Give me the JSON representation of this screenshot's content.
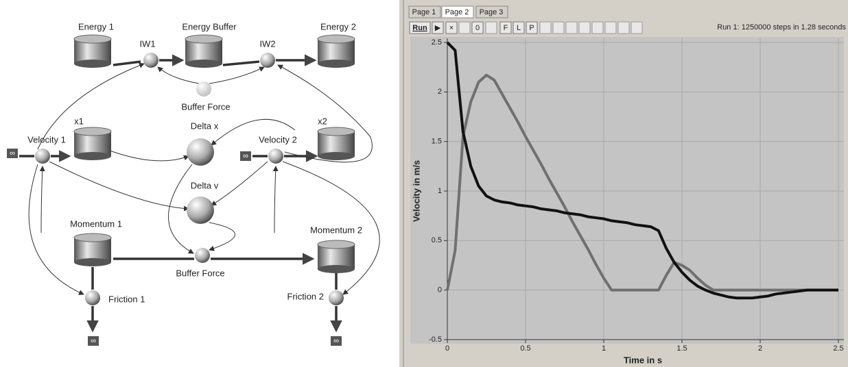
{
  "diagram": {
    "nodes": [
      "Energy 1",
      "IW1",
      "Energy Buffer",
      "IW2",
      "Energy 2",
      "Buffer Force",
      "x1",
      "Delta x",
      "x2",
      "Velocity 1",
      "Velocity 2",
      "Delta v",
      "Momentum 1",
      "Momentum 2",
      "Buffer Force",
      "Friction 1",
      "Friction 2"
    ],
    "infinity_symbol": "∞"
  },
  "tabs": [
    "Page 1",
    "Page 2",
    "Page 3"
  ],
  "toolbar": {
    "buttons": [
      "Run",
      "▶",
      "×",
      "0",
      "F",
      "L",
      "P"
    ],
    "status": "Run 1: 1250000 steps in 1.28 seconds"
  },
  "chart_data": {
    "type": "line",
    "x_label": "Time in s",
    "y_label": "Velocity in m/s",
    "x": [
      0,
      0.05,
      0.1,
      0.15,
      0.2,
      0.25,
      0.3,
      0.35,
      0.4,
      0.45,
      0.5,
      0.55,
      0.6,
      0.65,
      0.7,
      0.75,
      0.8,
      0.85,
      0.9,
      0.95,
      1.0,
      1.05,
      1.1,
      1.15,
      1.2,
      1.25,
      1.3,
      1.35,
      1.4,
      1.45,
      1.5,
      1.55,
      1.6,
      1.65,
      1.7,
      1.75,
      1.8,
      1.85,
      1.9,
      1.95,
      2.0,
      2.05,
      2.1,
      2.15,
      2.2,
      2.25,
      2.3,
      2.35,
      2.4,
      2.45,
      2.5
    ],
    "series": [
      {
        "color": "#111111",
        "values": [
          2.5,
          2.42,
          1.6,
          1.25,
          1.05,
          0.95,
          0.91,
          0.89,
          0.88,
          0.86,
          0.85,
          0.84,
          0.82,
          0.81,
          0.8,
          0.78,
          0.77,
          0.76,
          0.74,
          0.73,
          0.72,
          0.7,
          0.69,
          0.68,
          0.66,
          0.65,
          0.64,
          0.6,
          0.42,
          0.28,
          0.18,
          0.1,
          0.04,
          0,
          -0.03,
          -0.05,
          -0.07,
          -0.08,
          -0.08,
          -0.08,
          -0.07,
          -0.06,
          -0.04,
          -0.03,
          -0.02,
          -0.01,
          0,
          0,
          0,
          0,
          0
        ]
      },
      {
        "color": "#707070",
        "values": [
          0,
          0.4,
          1.55,
          1.9,
          2.1,
          2.17,
          2.12,
          1.98,
          1.84,
          1.7,
          1.55,
          1.41,
          1.27,
          1.12,
          0.98,
          0.84,
          0.69,
          0.55,
          0.41,
          0.26,
          0.12,
          0,
          0,
          0,
          0,
          0,
          0,
          0,
          0.15,
          0.28,
          0.25,
          0.2,
          0.12,
          0.05,
          0,
          0,
          0,
          0,
          0,
          0,
          0,
          0,
          0,
          0,
          0,
          0,
          0,
          0,
          0,
          0,
          0
        ]
      }
    ],
    "xlim": [
      0,
      2.5
    ],
    "ylim": [
      -0.5,
      2.5
    ],
    "xticks": [
      0,
      0.5,
      1,
      1.5,
      2,
      2.5
    ],
    "yticks": [
      -0.5,
      0,
      0.5,
      1,
      1.5,
      2,
      2.5
    ],
    "grid": true
  }
}
